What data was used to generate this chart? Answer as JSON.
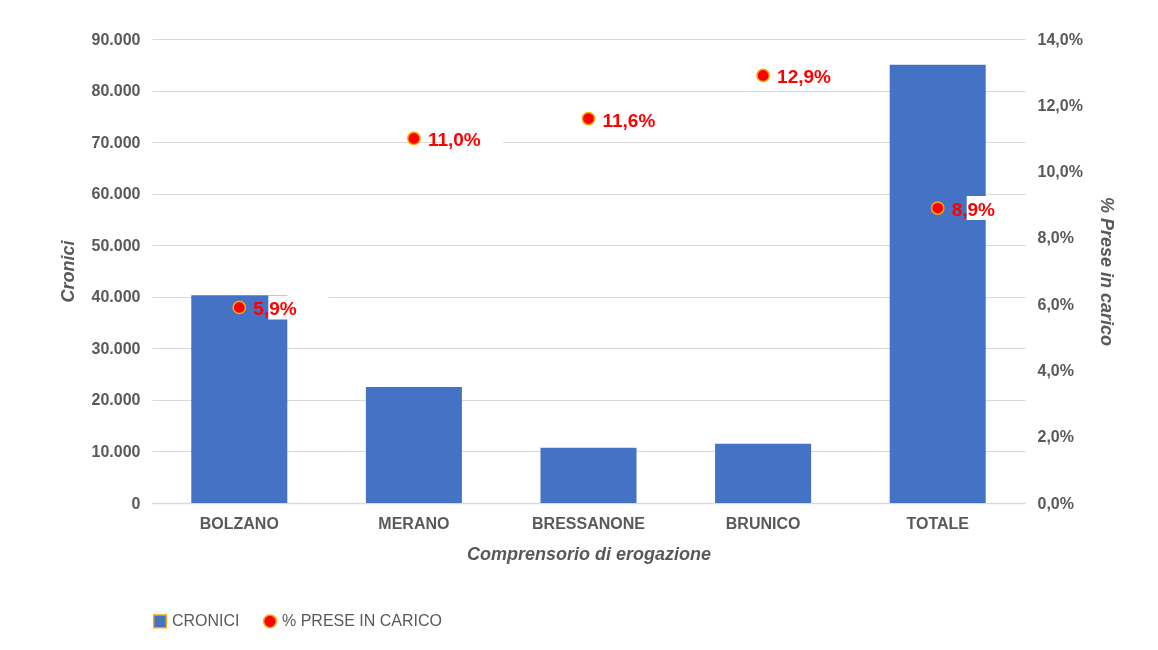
{
  "chart_data": {
    "type": "bar",
    "xlabel": "Comprensorio di erogazione",
    "ylabel": "Cronici",
    "y2label": "% Prese in carico",
    "categories": [
      "BOLZANO",
      "MERANO",
      "BRESSANONE",
      "BRUNICO",
      "TOTALE"
    ],
    "series": [
      {
        "name": "CRONICI",
        "type": "bar",
        "color": "#4472c4",
        "values": [
          40300,
          22500,
          10700,
          11500,
          85000
        ]
      },
      {
        "name": "% PRESE IN CARICO",
        "type": "scatter",
        "axis": "y2",
        "color": "#ff0000",
        "values": [
          5.9,
          11.0,
          11.6,
          12.9,
          8.9
        ],
        "value_labels": [
          "5,9%",
          "11,0%",
          "11,6%",
          "12,9%",
          "8,9%"
        ]
      }
    ],
    "ylim": [
      0,
      90000
    ],
    "yticks": [
      {
        "value": 0,
        "label": "0"
      },
      {
        "value": 10000,
        "label": "10.000"
      },
      {
        "value": 20000,
        "label": "20.000"
      },
      {
        "value": 30000,
        "label": "30.000"
      },
      {
        "value": 40000,
        "label": "40.000"
      },
      {
        "value": 50000,
        "label": "50.000"
      },
      {
        "value": 60000,
        "label": "60.000"
      },
      {
        "value": 70000,
        "label": "70.000"
      },
      {
        "value": 80000,
        "label": "80.000"
      },
      {
        "value": 90000,
        "label": "90.000"
      }
    ],
    "y2lim": [
      0,
      14
    ],
    "y2ticks": [
      {
        "value": 0,
        "label": "0,0%"
      },
      {
        "value": 2,
        "label": "2,0%"
      },
      {
        "value": 4,
        "label": "4,0%"
      },
      {
        "value": 6,
        "label": "6,0%"
      },
      {
        "value": 8,
        "label": "8,0%"
      },
      {
        "value": 10,
        "label": "10,0%"
      },
      {
        "value": 12,
        "label": "12,0%"
      },
      {
        "value": 14,
        "label": "14,0%"
      }
    ],
    "grid": "y",
    "legend": "bottom",
    "marker": "circle"
  }
}
